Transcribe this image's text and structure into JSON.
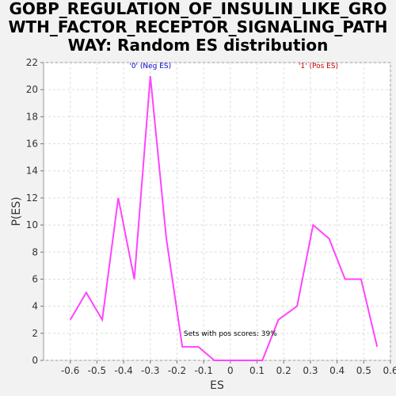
{
  "title_lines": [
    "GOBP_REGULATION_OF_INSULIN_LIKE_GRO",
    "WTH_FACTOR_RECEPTOR_SIGNALING_PATH",
    "WAY: Random ES distribution"
  ],
  "chart_data": {
    "type": "line",
    "title": "GOBP_REGULATION_OF_INSULIN_LIKE_GROWTH_FACTOR_RECEPTOR_SIGNALING_PATHWAY: Random ES distribution",
    "xlabel": "ES",
    "ylabel": "P(ES)",
    "xlim": [
      -0.7,
      0.6
    ],
    "ylim": [
      0,
      22
    ],
    "xticks": [
      -0.6,
      -0.5,
      -0.4,
      -0.3,
      -0.2,
      -0.1,
      0,
      0.1,
      0.2,
      0.3,
      0.4,
      0.5,
      0.6
    ],
    "yticks": [
      0,
      2,
      4,
      6,
      8,
      10,
      12,
      14,
      16,
      18,
      20,
      22
    ],
    "grid": true,
    "series": [
      {
        "color": "#ff44ff",
        "x": [
          -0.6,
          -0.54,
          -0.48,
          -0.42,
          -0.36,
          -0.3,
          -0.24,
          -0.18,
          -0.12,
          -0.06,
          0.0,
          0.06,
          0.12,
          0.18,
          0.25,
          0.31,
          0.37,
          0.43,
          0.49,
          0.55
        ],
        "y": [
          3,
          5,
          3,
          12,
          6,
          21,
          9,
          1,
          1,
          0,
          0,
          0,
          0,
          3,
          4,
          10,
          9,
          6,
          6,
          1
        ]
      }
    ],
    "annotations": [
      {
        "text": "'0' (Neg ES)",
        "x": -0.3,
        "y": 21.6,
        "color": "#0000cc"
      },
      {
        "text": "'1' (Pos ES)",
        "x": 0.33,
        "y": 21.6,
        "color": "#cc0000"
      },
      {
        "text": "Sets with pos scores: 39%",
        "x": 0.0,
        "y": 1.8,
        "color": "#000000"
      }
    ]
  }
}
